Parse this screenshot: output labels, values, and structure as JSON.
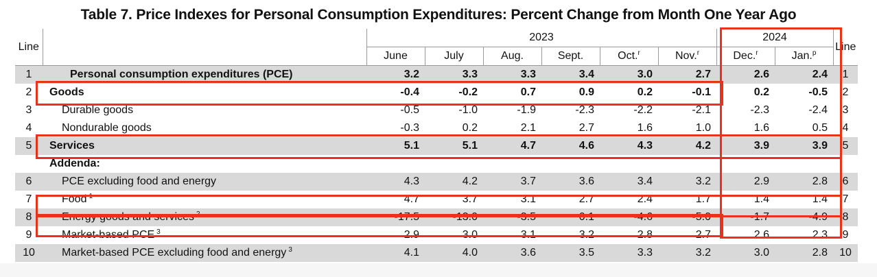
{
  "title": "Table 7. Price Indexes for Personal Consumption Expenditures: Percent Change from Month One Year Ago",
  "header": {
    "line_label": "Line",
    "year_2023": "2023",
    "year_2024": "2024",
    "months": [
      {
        "label": "June",
        "sup": ""
      },
      {
        "label": "July",
        "sup": ""
      },
      {
        "label": "Aug.",
        "sup": ""
      },
      {
        "label": "Sept.",
        "sup": ""
      },
      {
        "label": "Oct.",
        "sup": "r"
      },
      {
        "label": "Nov.",
        "sup": "r"
      },
      {
        "label": "Dec.",
        "sup": "r"
      },
      {
        "label": "Jan.",
        "sup": "p"
      }
    ]
  },
  "rows": [
    {
      "line": "1",
      "label": "Personal consumption expenditures (PCE)",
      "sup": "",
      "values": [
        "3.2",
        "3.3",
        "3.3",
        "3.4",
        "3.0",
        "2.7",
        "2.6",
        "2.4"
      ]
    },
    {
      "line": "2",
      "label": "Goods",
      "sup": "",
      "values": [
        "-0.4",
        "-0.2",
        "0.7",
        "0.9",
        "0.2",
        "-0.1",
        "0.2",
        "-0.5"
      ]
    },
    {
      "line": "3",
      "label": "Durable goods",
      "sup": "",
      "values": [
        "-0.5",
        "-1.0",
        "-1.9",
        "-2.3",
        "-2.2",
        "-2.1",
        "-2.3",
        "-2.4"
      ]
    },
    {
      "line": "4",
      "label": "Nondurable goods",
      "sup": "",
      "values": [
        "-0.3",
        "0.2",
        "2.1",
        "2.7",
        "1.6",
        "1.0",
        "1.6",
        "0.5"
      ]
    },
    {
      "line": "5",
      "label": "Services",
      "sup": "",
      "values": [
        "5.1",
        "5.1",
        "4.7",
        "4.6",
        "4.3",
        "4.2",
        "3.9",
        "3.9"
      ]
    },
    {
      "line": "",
      "label": "Addenda:",
      "sup": "",
      "values": [
        "",
        "",
        "",
        "",
        "",
        "",
        "",
        ""
      ]
    },
    {
      "line": "6",
      "label": "PCE excluding food and energy",
      "sup": "",
      "values": [
        "4.3",
        "4.2",
        "3.7",
        "3.6",
        "3.4",
        "3.2",
        "2.9",
        "2.8"
      ]
    },
    {
      "line": "7",
      "label": "Food",
      "sup": "1",
      "values": [
        "4.7",
        "3.7",
        "3.1",
        "2.7",
        "2.4",
        "1.7",
        "1.4",
        "1.4"
      ]
    },
    {
      "line": "8",
      "label": "Energy goods and services",
      "sup": "2",
      "values": [
        "-17.5",
        "-13.0",
        "-3.5",
        "0.1",
        "-4.6",
        "-5.0",
        "-1.7",
        "-4.9"
      ]
    },
    {
      "line": "9",
      "label": "Market-based PCE",
      "sup": "3",
      "values": [
        "2.9",
        "3.0",
        "3.1",
        "3.2",
        "2.8",
        "2.7",
        "2.6",
        "2.3"
      ]
    },
    {
      "line": "10",
      "label": "Market-based PCE excluding food and energy",
      "sup": "3",
      "values": [
        "4.1",
        "4.0",
        "3.6",
        "3.5",
        "3.3",
        "3.2",
        "3.0",
        "2.8"
      ]
    }
  ],
  "highlight_color": "#e8321c"
}
